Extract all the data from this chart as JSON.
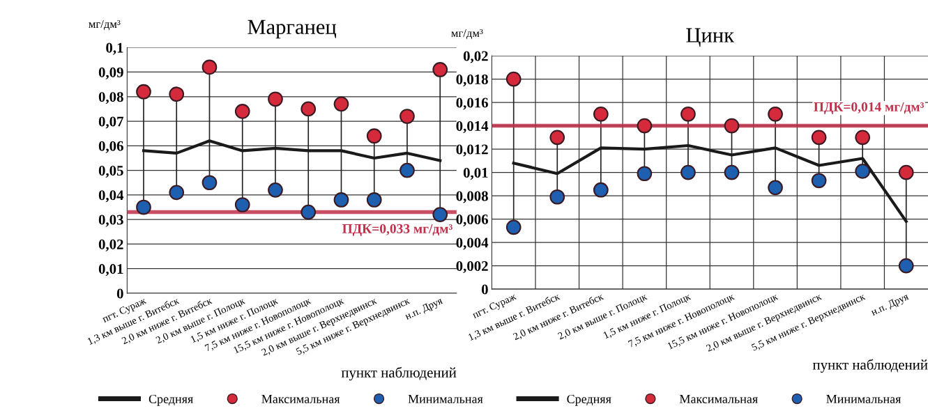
{
  "chart_data": [
    {
      "type": "line",
      "title": "Марганец",
      "ylabel": "мг/дм³",
      "xlabel": "пункт наблюдений",
      "categories": [
        "пгт. Сураж",
        "1,3 км выше г. Витебск",
        "2,0 км ниже г. Витебск",
        "2,0 км выше г. Полоцк",
        "1,5 км ниже г. Полоцк",
        "7,5 км ниже г. Новополоцк",
        "15,5 км ниже г. Новополоцк",
        "2,0 км выше г. Верхнедвинск",
        "5,5 км ниже г. Верхнедвинск",
        "н.п. Друя"
      ],
      "series": [
        {
          "name": "Средняя",
          "type": "line",
          "color": "#1a1a1a",
          "values": [
            0.058,
            0.057,
            0.062,
            0.058,
            0.059,
            0.058,
            0.058,
            0.055,
            0.057,
            0.054
          ]
        },
        {
          "name": "Максимальная",
          "type": "scatter",
          "marker": "circle",
          "color": "#d42a3c",
          "values": [
            0.082,
            0.081,
            0.092,
            0.074,
            0.079,
            0.075,
            0.077,
            0.064,
            0.072,
            0.091
          ]
        },
        {
          "name": "Минимальная",
          "type": "scatter",
          "marker": "circle",
          "color": "#1f5fb0",
          "values": [
            0.035,
            0.041,
            0.045,
            0.036,
            0.042,
            0.033,
            0.038,
            0.038,
            0.05,
            0.032
          ]
        }
      ],
      "ylim": [
        0,
        0.1
      ],
      "yticks": [
        {
          "value": 0,
          "label": "0"
        },
        {
          "value": 0.01,
          "label": "0,01"
        },
        {
          "value": 0.02,
          "label": "0,02"
        },
        {
          "value": 0.03,
          "label": "0,03"
        },
        {
          "value": 0.04,
          "label": "0,04"
        },
        {
          "value": 0.05,
          "label": "0,05"
        },
        {
          "value": 0.06,
          "label": "0,06"
        },
        {
          "value": 0.07,
          "label": "0,07"
        },
        {
          "value": 0.08,
          "label": "0,08"
        },
        {
          "value": 0.09,
          "label": "0,09"
        },
        {
          "value": 0.1,
          "label": "0,1"
        }
      ],
      "ref_lines": [
        {
          "axis": "y",
          "value": 0.033,
          "label": "ПДК=0,033 мг/дм³",
          "color": "#c0304a"
        }
      ],
      "grid": "y",
      "legend": "bottom"
    },
    {
      "type": "line",
      "title": "Цинк",
      "ylabel": "мг/дм³",
      "xlabel": "пункт наблюдений",
      "categories": [
        "пгт. Сураж",
        "1,3 км выше г. Витебск",
        "2,0 км ниже г. Витебск",
        "2,0 км выше г. Полоцк",
        "1,5 км ниже г. Полоцк",
        "7,5 км ниже г. Новополоцк",
        "15,5 км ниже г. Новополоцк",
        "2,0 км выше г. Верхнедвинск",
        "5,5 км ниже г. Верхнедвинск",
        "н.п. Друя"
      ],
      "series": [
        {
          "name": "Средняя",
          "type": "line",
          "color": "#1a1a1a",
          "values": [
            0.0108,
            0.0099,
            0.0121,
            0.012,
            0.0123,
            0.0115,
            0.0121,
            0.0106,
            0.0112,
            0.0058
          ]
        },
        {
          "name": "Максимальная",
          "type": "scatter",
          "marker": "circle",
          "color": "#d42a3c",
          "values": [
            0.018,
            0.013,
            0.015,
            0.014,
            0.015,
            0.014,
            0.015,
            0.013,
            0.013,
            0.01
          ]
        },
        {
          "name": "Минимальная",
          "type": "scatter",
          "marker": "circle",
          "color": "#1f5fb0",
          "values": [
            0.0053,
            0.0079,
            0.0085,
            0.0099,
            0.01,
            0.01,
            0.0087,
            0.0093,
            0.0101,
            0.002
          ]
        }
      ],
      "ylim": [
        0,
        0.02
      ],
      "yticks": [
        {
          "value": 0,
          "label": "0"
        },
        {
          "value": 0.002,
          "label": "0,002"
        },
        {
          "value": 0.004,
          "label": "0,004"
        },
        {
          "value": 0.006,
          "label": "0,006"
        },
        {
          "value": 0.008,
          "label": "0,008"
        },
        {
          "value": 0.01,
          "label": "0,01"
        },
        {
          "value": 0.012,
          "label": "0,012"
        },
        {
          "value": 0.014,
          "label": "0,014"
        },
        {
          "value": 0.016,
          "label": "0,016"
        },
        {
          "value": 0.018,
          "label": "0,018"
        },
        {
          "value": 0.02,
          "label": "0,02"
        }
      ],
      "ref_lines": [
        {
          "axis": "y",
          "value": 0.014,
          "label": "ПДК=0,014 мг/дм³",
          "color": "#c0304a"
        }
      ],
      "grid": true,
      "legend": "bottom"
    }
  ]
}
